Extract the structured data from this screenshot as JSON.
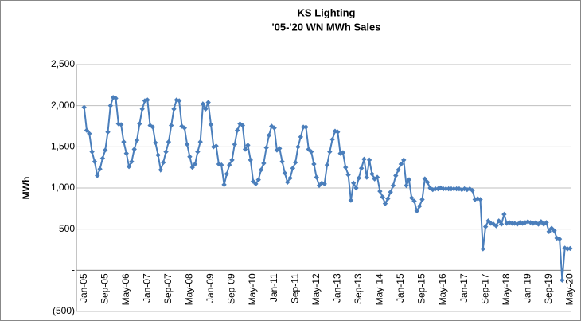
{
  "chart_data": {
    "type": "line",
    "title": "KS Lighting",
    "subtitle": "'05-'20 WN MWh Sales",
    "y_label": "MWh",
    "categories": [
      "Jan-05",
      null,
      null,
      null,
      null,
      null,
      null,
      null,
      "Sep-05",
      null,
      null,
      null,
      null,
      null,
      null,
      null,
      "May-06",
      null,
      null,
      null,
      null,
      null,
      null,
      null,
      "Jan-07",
      null,
      null,
      null,
      null,
      null,
      null,
      null,
      "Sep-07",
      null,
      null,
      null,
      null,
      null,
      null,
      null,
      "May-08",
      null,
      null,
      null,
      null,
      null,
      null,
      null,
      "Jan-09",
      null,
      null,
      null,
      null,
      null,
      null,
      null,
      "Sep-09",
      null,
      null,
      null,
      null,
      null,
      null,
      null,
      "May-10",
      null,
      null,
      null,
      null,
      null,
      null,
      null,
      "Jan-11",
      null,
      null,
      null,
      null,
      null,
      null,
      null,
      "Sep-11",
      null,
      null,
      null,
      null,
      null,
      null,
      null,
      "May-12",
      null,
      null,
      null,
      null,
      null,
      null,
      null,
      "Jan-13",
      null,
      null,
      null,
      null,
      null,
      null,
      null,
      "Sep-13",
      null,
      null,
      null,
      null,
      null,
      null,
      null,
      "May-14",
      null,
      null,
      null,
      null,
      null,
      null,
      null,
      "Jan-15",
      null,
      null,
      null,
      null,
      null,
      null,
      null,
      "Sep-15",
      null,
      null,
      null,
      null,
      null,
      null,
      null,
      "May-16",
      null,
      null,
      null,
      null,
      null,
      null,
      null,
      "Jan-17",
      null,
      null,
      null,
      null,
      null,
      null,
      null,
      "Sep-17",
      null,
      null,
      null,
      null,
      null,
      null,
      null,
      "May-18",
      null,
      null,
      null,
      null,
      null,
      null,
      null,
      "Jan-19",
      null,
      null,
      null,
      null,
      null,
      null,
      null,
      "Sep-19",
      null,
      null,
      null,
      null,
      null,
      null,
      null,
      "May-20"
    ],
    "values": [
      1980,
      1700,
      1660,
      1440,
      1320,
      1150,
      1230,
      1360,
      1460,
      1680,
      2000,
      2100,
      2090,
      1780,
      1770,
      1560,
      1420,
      1260,
      1320,
      1470,
      1580,
      1780,
      1960,
      2060,
      2070,
      1760,
      1740,
      1550,
      1400,
      1220,
      1310,
      1440,
      1560,
      1760,
      1960,
      2070,
      2060,
      1750,
      1730,
      1530,
      1380,
      1250,
      1290,
      1440,
      1560,
      2020,
      1960,
      2040,
      1770,
      1500,
      1510,
      1290,
      1280,
      1040,
      1170,
      1280,
      1340,
      1530,
      1700,
      1780,
      1760,
      1470,
      1520,
      1340,
      1080,
      1050,
      1100,
      1220,
      1300,
      1490,
      1640,
      1750,
      1730,
      1460,
      1480,
      1320,
      1180,
      1070,
      1120,
      1240,
      1310,
      1500,
      1620,
      1740,
      1740,
      1470,
      1440,
      1290,
      1130,
      1030,
      1060,
      1050,
      1280,
      1440,
      1590,
      1690,
      1680,
      1420,
      1430,
      1250,
      1160,
      850,
      1060,
      1000,
      1120,
      1240,
      1350,
      1130,
      1340,
      1170,
      1110,
      1130,
      960,
      890,
      810,
      870,
      950,
      1030,
      1150,
      1220,
      1290,
      1340,
      1030,
      1100,
      880,
      840,
      720,
      780,
      860,
      1110,
      1070,
      1000,
      980,
      990,
      990,
      1000,
      990,
      990,
      990,
      990,
      990,
      990,
      990,
      980,
      990,
      980,
      990,
      970,
      860,
      870,
      860,
      260,
      530,
      600,
      570,
      560,
      540,
      600,
      560,
      680,
      570,
      580,
      570,
      570,
      560,
      580,
      570,
      580,
      590,
      580,
      570,
      580,
      560,
      590,
      560,
      580,
      470,
      510,
      480,
      390,
      380,
      -120,
      270,
      260,
      265
    ],
    "color": "#4a7ebb",
    "ylim": [
      -500,
      2500
    ],
    "yticks": [
      {
        "value": -500,
        "label": "(500)"
      },
      {
        "value": 0,
        "label": "-"
      },
      500,
      {
        "value": 1000,
        "label": "1,000"
      },
      {
        "value": 1500,
        "label": "1,500"
      },
      {
        "value": 2000,
        "label": "2,000"
      },
      {
        "value": 2500,
        "label": "2,500"
      }
    ],
    "grid": true
  }
}
